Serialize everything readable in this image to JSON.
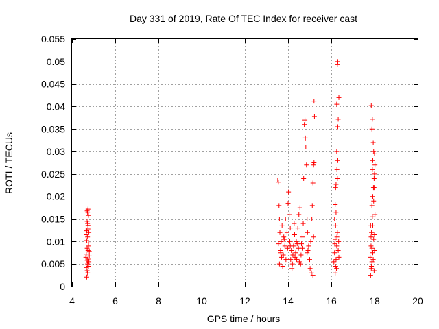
{
  "chart_data": {
    "type": "scatter",
    "title": "Day 331 of 2019, Rate Of TEC Index for receiver cast",
    "xlabel": "GPS time / hours",
    "ylabel": "ROTI / TECUs",
    "xlim": [
      4,
      20
    ],
    "ylim": [
      0,
      0.055
    ],
    "x_ticks": [
      4,
      6,
      8,
      10,
      12,
      14,
      16,
      18,
      20
    ],
    "y_ticks": [
      0,
      0.005,
      0.01,
      0.015,
      0.02,
      0.025,
      0.03,
      0.035,
      0.04,
      0.045,
      0.05,
      0.055
    ],
    "x_tick_labels": [
      "4",
      "6",
      "8",
      "10",
      "12",
      "14",
      "16",
      "18",
      "20"
    ],
    "y_tick_labels": [
      "0",
      "0.005",
      "0.01",
      "0.015",
      "0.02",
      "0.025",
      "0.03",
      "0.035",
      "0.04",
      "0.045",
      "0.05",
      "0.055"
    ],
    "grid": true,
    "marker": "+",
    "series": [
      {
        "name": "ROTI",
        "color": "#ff0000",
        "points": [
          [
            4.68,
            0.0021
          ],
          [
            4.7,
            0.0035
          ],
          [
            4.72,
            0.005
          ],
          [
            4.74,
            0.0061
          ],
          [
            4.66,
            0.0072
          ],
          [
            4.7,
            0.0085
          ],
          [
            4.76,
            0.0097
          ],
          [
            4.72,
            0.011
          ],
          [
            4.68,
            0.0124
          ],
          [
            4.74,
            0.0136
          ],
          [
            4.7,
            0.0145
          ],
          [
            4.76,
            0.0158
          ],
          [
            4.72,
            0.0165
          ],
          [
            4.74,
            0.0172
          ],
          [
            4.7,
            0.0168
          ],
          [
            4.78,
            0.012
          ],
          [
            4.64,
            0.0065
          ],
          [
            4.8,
            0.0078
          ],
          [
            4.66,
            0.0042
          ],
          [
            4.78,
            0.0055
          ],
          [
            4.72,
            0.003
          ],
          [
            4.76,
            0.009
          ],
          [
            4.68,
            0.0102
          ],
          [
            4.74,
            0.008
          ],
          [
            4.7,
            0.0058
          ],
          [
            4.76,
            0.0045
          ],
          [
            4.66,
            0.0115
          ],
          [
            4.8,
            0.0068
          ],
          [
            4.72,
            0.014
          ],
          [
            4.74,
            0.0128
          ],
          [
            13.52,
            0.0237
          ],
          [
            13.55,
            0.0232
          ],
          [
            13.58,
            0.018
          ],
          [
            13.6,
            0.015
          ],
          [
            13.62,
            0.012
          ],
          [
            13.55,
            0.0095
          ],
          [
            13.65,
            0.008
          ],
          [
            13.7,
            0.0065
          ],
          [
            13.6,
            0.005
          ],
          [
            13.75,
            0.0045
          ],
          [
            13.68,
            0.01
          ],
          [
            13.8,
            0.011
          ],
          [
            13.72,
            0.0135
          ],
          [
            13.85,
            0.009
          ],
          [
            13.78,
            0.007
          ],
          [
            13.9,
            0.006
          ],
          [
            13.95,
            0.012
          ],
          [
            13.88,
            0.015
          ],
          [
            14.0,
            0.0185
          ],
          [
            14.02,
            0.021
          ],
          [
            14.05,
            0.016
          ],
          [
            14.1,
            0.013
          ],
          [
            14.08,
            0.01
          ],
          [
            14.15,
            0.008
          ],
          [
            14.12,
            0.006
          ],
          [
            14.2,
            0.005
          ],
          [
            14.18,
            0.004
          ],
          [
            14.25,
            0.009
          ],
          [
            14.3,
            0.0115
          ],
          [
            14.28,
            0.014
          ],
          [
            14.35,
            0.0075
          ],
          [
            14.4,
            0.006
          ],
          [
            14.38,
            0.01
          ],
          [
            14.45,
            0.013
          ],
          [
            14.5,
            0.016
          ],
          [
            14.55,
            0.0175
          ],
          [
            14.48,
            0.0085
          ],
          [
            14.6,
            0.007
          ],
          [
            14.58,
            0.005
          ],
          [
            14.65,
            0.011
          ],
          [
            14.7,
            0.014
          ],
          [
            14.75,
            0.036
          ],
          [
            14.78,
            0.037
          ],
          [
            14.8,
            0.033
          ],
          [
            14.82,
            0.031
          ],
          [
            14.85,
            0.027
          ],
          [
            14.72,
            0.024
          ],
          [
            14.88,
            0.015
          ],
          [
            14.9,
            0.012
          ],
          [
            14.95,
            0.009
          ],
          [
            15.0,
            0.006
          ],
          [
            15.02,
            0.004
          ],
          [
            15.05,
            0.01
          ],
          [
            15.1,
            0.015
          ],
          [
            15.12,
            0.018
          ],
          [
            15.15,
            0.023
          ],
          [
            15.18,
            0.027
          ],
          [
            15.2,
            0.0275
          ],
          [
            15.22,
            0.0378
          ],
          [
            15.2,
            0.0412
          ],
          [
            15.15,
            0.0025
          ],
          [
            15.08,
            0.003
          ],
          [
            14.92,
            0.008
          ],
          [
            14.68,
            0.0085
          ],
          [
            14.42,
            0.0095
          ],
          [
            14.22,
            0.007
          ],
          [
            13.98,
            0.0085
          ],
          [
            13.82,
            0.0105
          ],
          [
            13.66,
            0.0075
          ],
          [
            14.62,
            0.0095
          ],
          [
            14.32,
            0.0065
          ],
          [
            14.88,
            0.0075
          ],
          [
            15.18,
            0.011
          ],
          [
            14.52,
            0.0055
          ],
          [
            14.1,
            0.009
          ],
          [
            16.18,
            0.003
          ],
          [
            16.2,
            0.0045
          ],
          [
            16.22,
            0.006
          ],
          [
            16.15,
            0.0075
          ],
          [
            16.25,
            0.009
          ],
          [
            16.18,
            0.0105
          ],
          [
            16.28,
            0.012
          ],
          [
            16.2,
            0.0135
          ],
          [
            16.15,
            0.015
          ],
          [
            16.22,
            0.0165
          ],
          [
            16.18,
            0.0182
          ],
          [
            16.2,
            0.022
          ],
          [
            16.22,
            0.0227
          ],
          [
            16.28,
            0.024
          ],
          [
            16.26,
            0.026
          ],
          [
            16.3,
            0.028
          ],
          [
            16.25,
            0.03
          ],
          [
            16.3,
            0.0355
          ],
          [
            16.32,
            0.0372
          ],
          [
            16.25,
            0.0405
          ],
          [
            16.35,
            0.042
          ],
          [
            16.28,
            0.0493
          ],
          [
            16.3,
            0.05
          ],
          [
            16.32,
            0.008
          ],
          [
            16.12,
            0.0055
          ],
          [
            16.35,
            0.0065
          ],
          [
            16.24,
            0.004
          ],
          [
            16.16,
            0.0095
          ],
          [
            16.26,
            0.011
          ],
          [
            16.34,
            0.01
          ],
          [
            17.82,
            0.0025
          ],
          [
            17.85,
            0.004
          ],
          [
            17.88,
            0.0055
          ],
          [
            17.8,
            0.0065
          ],
          [
            17.92,
            0.0075
          ],
          [
            17.84,
            0.009
          ],
          [
            17.96,
            0.0105
          ],
          [
            17.86,
            0.012
          ],
          [
            17.82,
            0.0135
          ],
          [
            17.9,
            0.0155
          ],
          [
            17.88,
            0.018
          ],
          [
            17.92,
            0.02
          ],
          [
            17.95,
            0.022
          ],
          [
            17.98,
            0.024
          ],
          [
            17.9,
            0.026
          ],
          [
            17.92,
            0.028
          ],
          [
            17.96,
            0.03
          ],
          [
            18.0,
            0.0295
          ],
          [
            17.94,
            0.032
          ],
          [
            17.88,
            0.035
          ],
          [
            17.9,
            0.0372
          ],
          [
            17.85,
            0.0402
          ],
          [
            18.02,
            0.027
          ],
          [
            18.0,
            0.025
          ],
          [
            17.98,
            0.022
          ],
          [
            17.94,
            0.006
          ],
          [
            18.0,
            0.008
          ],
          [
            17.86,
            0.0045
          ],
          [
            17.98,
            0.0035
          ],
          [
            17.84,
            0.011
          ],
          [
            18.02,
            0.016
          ],
          [
            17.96,
            0.019
          ],
          [
            17.92,
            0.0135
          ],
          [
            17.88,
            0.0085
          ],
          [
            18.0,
            0.0115
          ]
        ]
      }
    ]
  }
}
